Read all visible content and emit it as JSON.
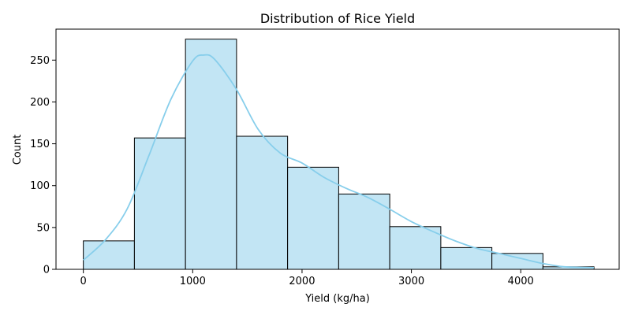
{
  "chart_data": {
    "type": "bar",
    "title": "Distribution of Rice Yield",
    "xlabel": "Yield (kg/ha)",
    "ylabel": "Count",
    "xlim": [
      -250,
      4900
    ],
    "ylim": [
      0,
      287
    ],
    "x_ticks": [
      0,
      1000,
      2000,
      3000,
      4000
    ],
    "y_ticks": [
      0,
      50,
      100,
      150,
      200,
      250
    ],
    "bin_edges": [
      0,
      467,
      934,
      1401,
      1868,
      2335,
      2802,
      3269,
      3736,
      4203,
      4670
    ],
    "values": [
      34,
      157,
      275,
      159,
      122,
      90,
      51,
      26,
      19,
      3
    ],
    "kde": {
      "x": [
        0,
        200,
        400,
        600,
        800,
        1000,
        1100,
        1200,
        1400,
        1600,
        1800,
        2000,
        2200,
        2400,
        2600,
        2800,
        3000,
        3200,
        3400,
        3600,
        3800,
        4000,
        4200,
        4400,
        4670
      ],
      "y": [
        11,
        35,
        72,
        136,
        203,
        249,
        256,
        251,
        215,
        167,
        139,
        127,
        110,
        97,
        86,
        72,
        57,
        45,
        34,
        25,
        19,
        13,
        7,
        3,
        2
      ]
    },
    "grid": false,
    "colors": {
      "bar_fill": "#c2e5f4",
      "bar_edge": "#000000",
      "kde_line": "#87ceeb"
    }
  }
}
